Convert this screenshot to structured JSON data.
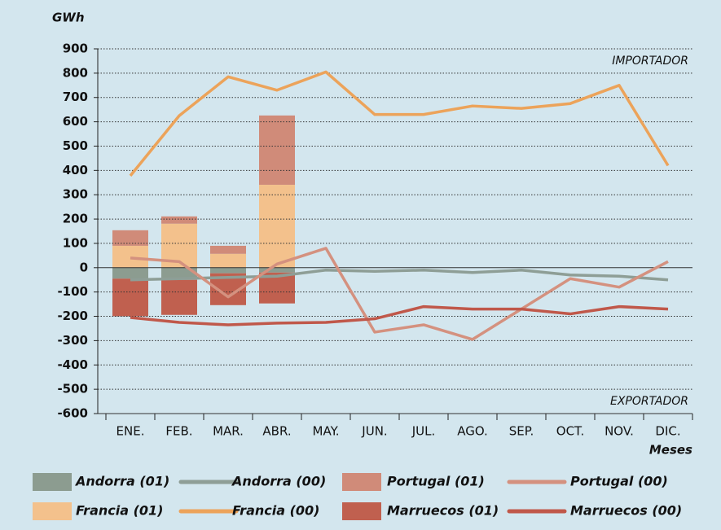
{
  "chart_data": {
    "type": "bar",
    "y_label": "GWh",
    "x_label": "Meses",
    "annotations": [
      "IMPORTADOR",
      "EXPORTADOR"
    ],
    "categories": [
      "ENE.",
      "FEB.",
      "MAR.",
      "ABR.",
      "MAY.",
      "JUN.",
      "JUL.",
      "AGO.",
      "SEP.",
      "OCT.",
      "NOV.",
      "DIC."
    ],
    "ylim": [
      -600,
      900
    ],
    "yticks": [
      -600,
      -500,
      -400,
      -300,
      -200,
      -100,
      0,
      100,
      200,
      300,
      400,
      500,
      600,
      700,
      800,
      900
    ],
    "grid": true,
    "series": [
      {
        "name": "Andorra (01)",
        "type": "bar",
        "color": "#8c9c90",
        "values": [
          -45,
          -50,
          -23,
          -20,
          null,
          null,
          null,
          null,
          null,
          null,
          null,
          null
        ]
      },
      {
        "name": "Andorra (00)",
        "type": "line",
        "color": "#8e9e96",
        "values": [
          -50,
          -45,
          -40,
          -35,
          -10,
          -15,
          -10,
          -20,
          -10,
          -30,
          -35,
          -50
        ]
      },
      {
        "name": "Portugal (01)",
        "type": "bar",
        "color": "#d08b79",
        "values": [
          64,
          30,
          33,
          285,
          null,
          null,
          null,
          null,
          null,
          null,
          null,
          null
        ]
      },
      {
        "name": "Portugal (00)",
        "type": "line",
        "color": "#d4917f",
        "values": [
          40,
          25,
          -120,
          15,
          80,
          -265,
          -235,
          -295,
          -170,
          -45,
          -80,
          25
        ]
      },
      {
        "name": "Francia (01)",
        "type": "bar",
        "color": "#f3c18c",
        "values": [
          90,
          181,
          57,
          341,
          null,
          null,
          null,
          null,
          null,
          null,
          null,
          null
        ]
      },
      {
        "name": "Francia (00)",
        "type": "line",
        "color": "#eca35a",
        "values": [
          378,
          625,
          785,
          730,
          805,
          630,
          630,
          665,
          655,
          675,
          750,
          420
        ]
      },
      {
        "name": "Marruecos (01)",
        "type": "bar",
        "color": "#c0604f",
        "values": [
          -155,
          -144,
          -131,
          -127,
          null,
          null,
          null,
          null,
          null,
          null,
          null,
          null
        ]
      },
      {
        "name": "Marruecos (00)",
        "type": "line",
        "color": "#c0584a",
        "values": [
          -205,
          -225,
          -235,
          -228,
          -225,
          -210,
          -160,
          -170,
          -170,
          -190,
          -160,
          -170
        ]
      }
    ]
  }
}
